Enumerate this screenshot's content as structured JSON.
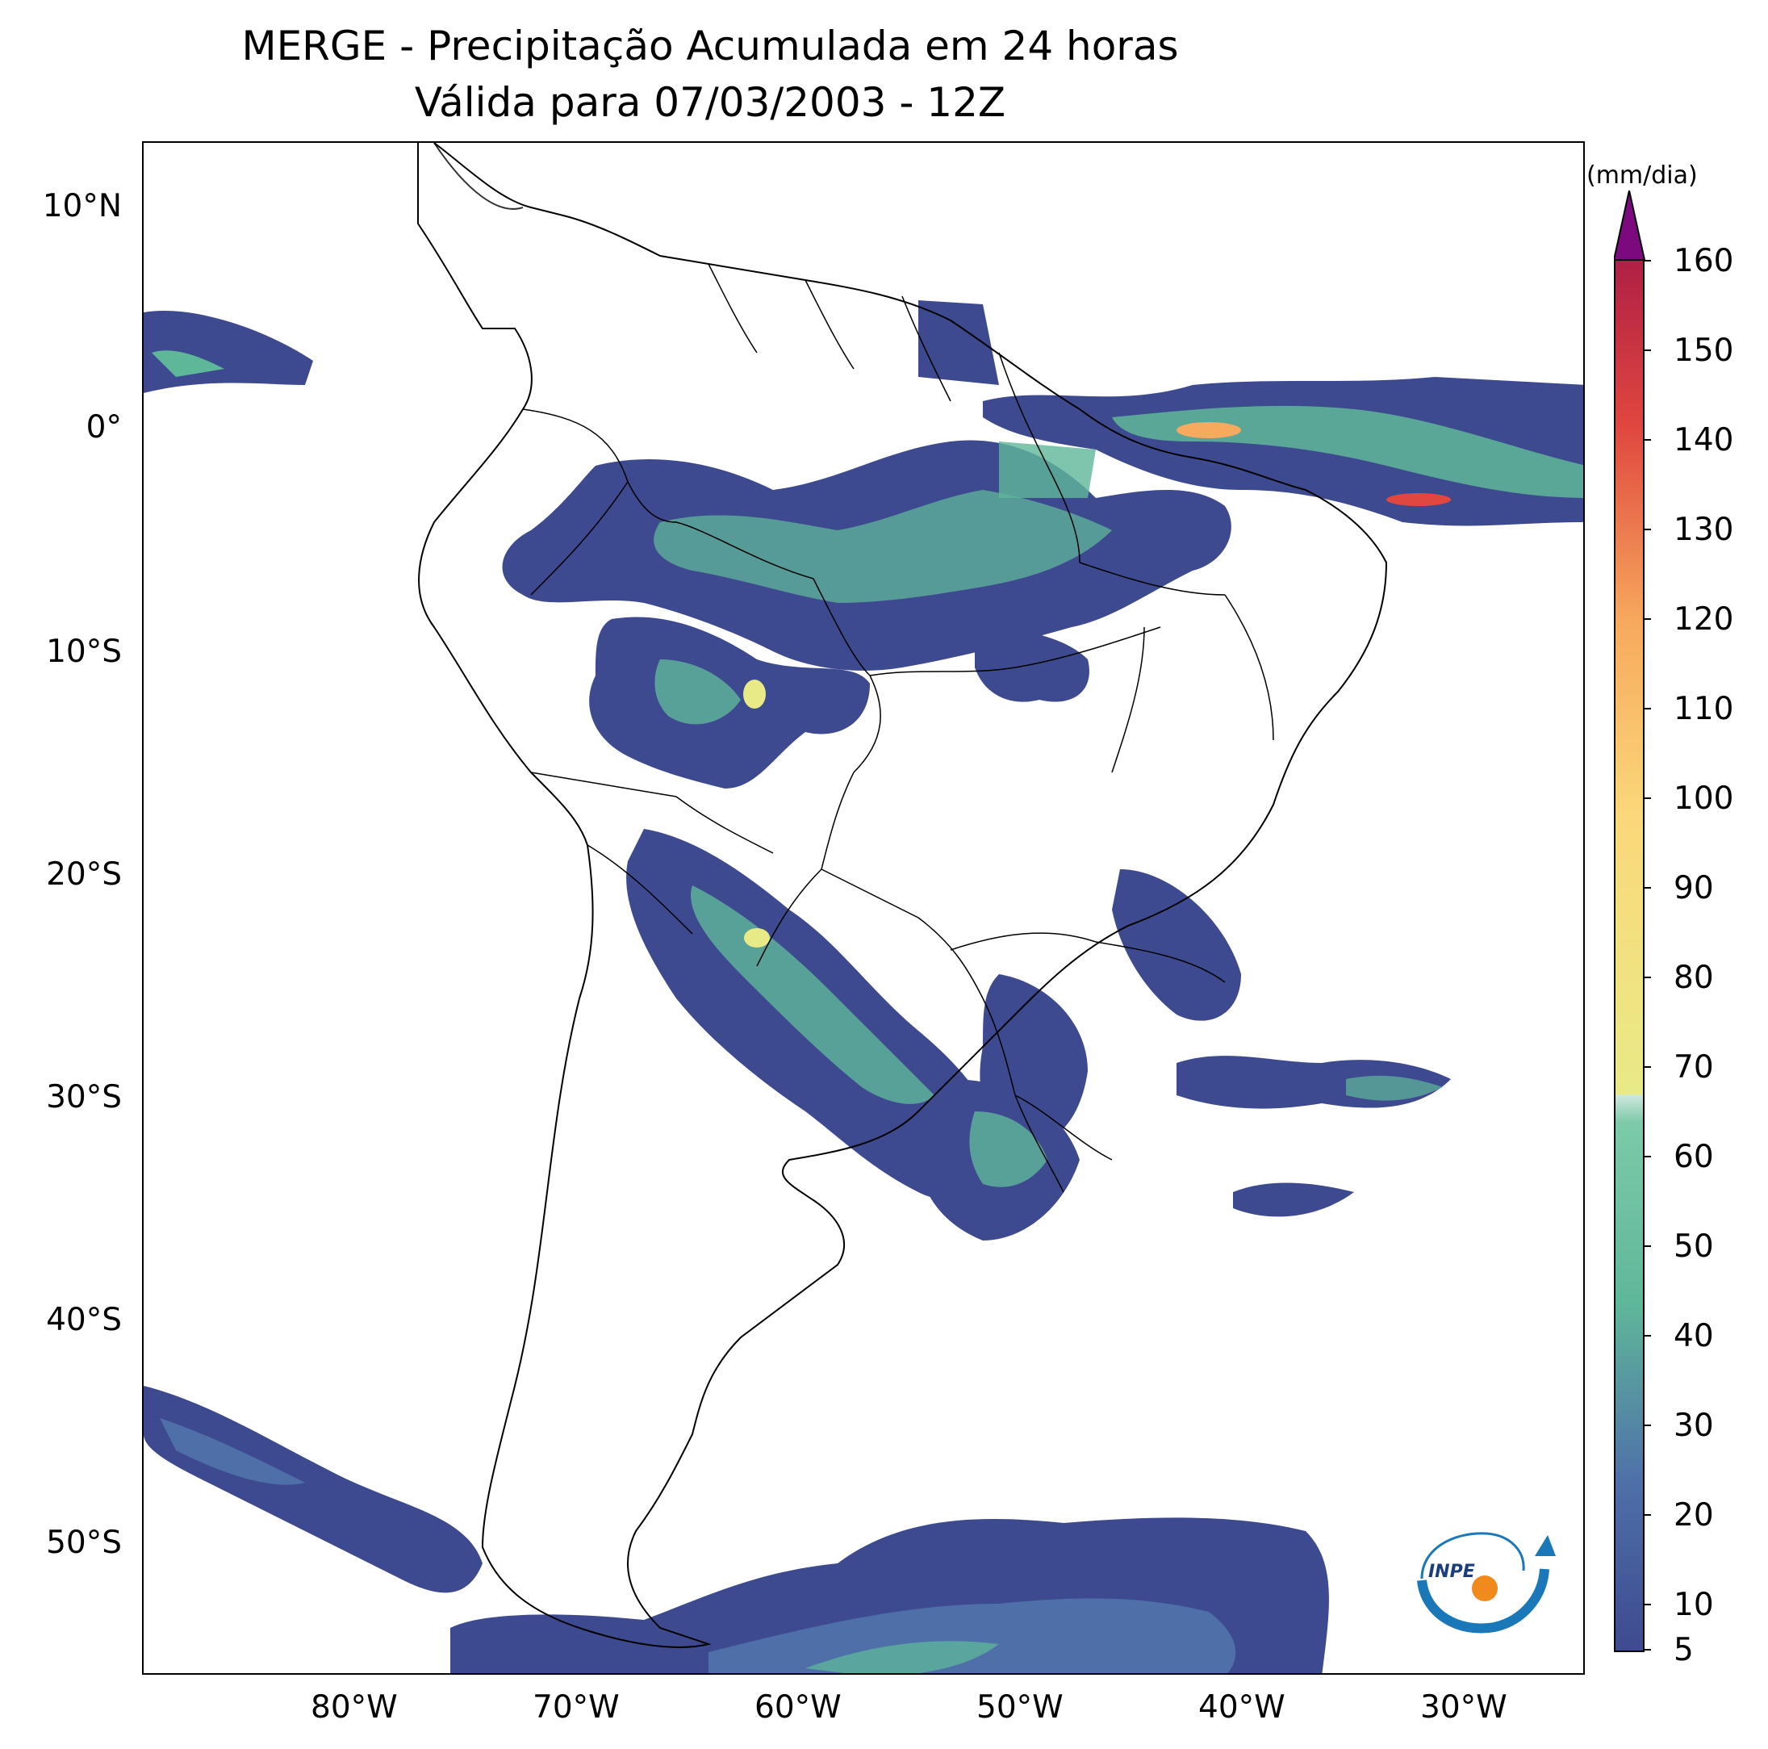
{
  "title": {
    "line1": "MERGE - Precipitação Acumulada em 24 horas",
    "line2": "Válida para 07/03/2003 - 12Z"
  },
  "map": {
    "region": "South America",
    "lon_range": [
      -90,
      -25
    ],
    "lat_range": [
      -56,
      13
    ],
    "lat_ticks": [
      "10°N",
      "0°",
      "10°S",
      "20°S",
      "30°S",
      "40°S",
      "50°S"
    ],
    "lon_ticks": [
      "80°W",
      "70°W",
      "60°W",
      "50°W",
      "40°W",
      "30°W"
    ],
    "boundaries": "country and Brazilian state borders",
    "field": "24h accumulated precipitation"
  },
  "colorbar": {
    "unit": "(mm/dia)",
    "ticks": [
      "160",
      "150",
      "140",
      "130",
      "120",
      "110",
      "100",
      "90",
      "80",
      "70",
      "60",
      "50",
      "40",
      "30",
      "20",
      "10",
      "5"
    ],
    "min": 5,
    "max": 160,
    "extend": "max",
    "colors": {
      "low": "#3e4a8f",
      "mid_low": "#4e6fa8",
      "mid": "#5fb79a",
      "mid_high": "#cfe8e0",
      "yellow": "#e8ea86",
      "orange": "#f7a95d",
      "red": "#e0473f",
      "top": "#b01f45",
      "extend": "#7c0a7e"
    }
  },
  "logo": {
    "icon": "inpe-logo",
    "text": "INPE"
  }
}
